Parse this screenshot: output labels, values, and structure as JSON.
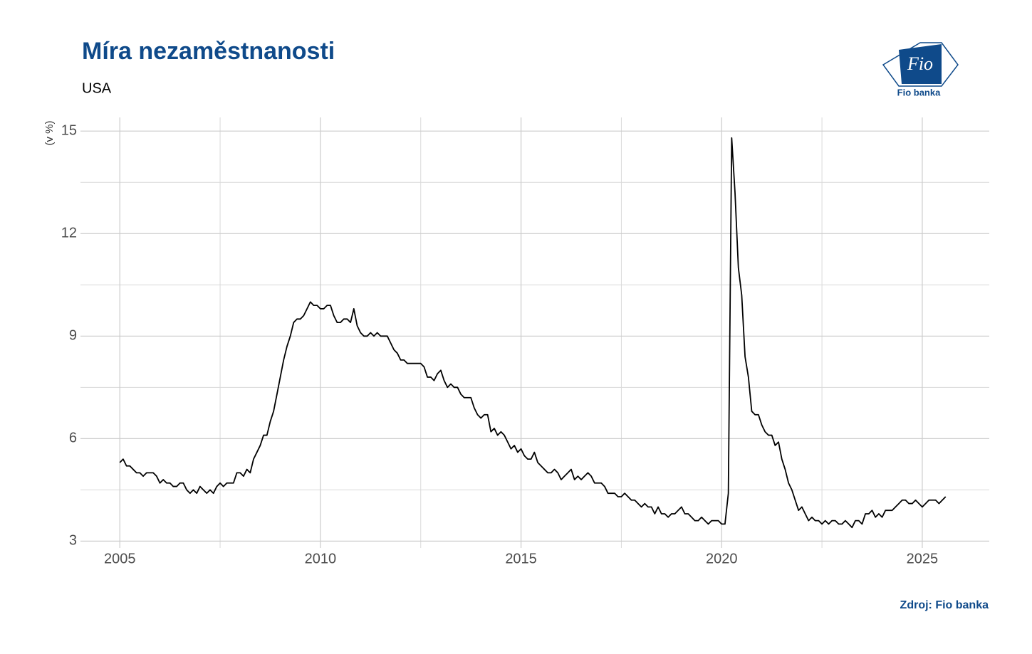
{
  "chart_data": {
    "type": "line",
    "title": "Míra nezaměstnanosti",
    "subtitle": "USA",
    "y_label": "(v %)",
    "source": "Zdroj: Fio banka",
    "x": [
      2005.0,
      2005.083,
      2005.167,
      2005.25,
      2005.333,
      2005.417,
      2005.5,
      2005.583,
      2005.667,
      2005.75,
      2005.833,
      2005.917,
      2006.0,
      2006.083,
      2006.167,
      2006.25,
      2006.333,
      2006.417,
      2006.5,
      2006.583,
      2006.667,
      2006.75,
      2006.833,
      2006.917,
      2007.0,
      2007.083,
      2007.167,
      2007.25,
      2007.333,
      2007.417,
      2007.5,
      2007.583,
      2007.667,
      2007.75,
      2007.833,
      2007.917,
      2008.0,
      2008.083,
      2008.167,
      2008.25,
      2008.333,
      2008.417,
      2008.5,
      2008.583,
      2008.667,
      2008.75,
      2008.833,
      2008.917,
      2009.0,
      2009.083,
      2009.167,
      2009.25,
      2009.333,
      2009.417,
      2009.5,
      2009.583,
      2009.667,
      2009.75,
      2009.833,
      2009.917,
      2010.0,
      2010.083,
      2010.167,
      2010.25,
      2010.333,
      2010.417,
      2010.5,
      2010.583,
      2010.667,
      2010.75,
      2010.833,
      2010.917,
      2011.0,
      2011.083,
      2011.167,
      2011.25,
      2011.333,
      2011.417,
      2011.5,
      2011.583,
      2011.667,
      2011.75,
      2011.833,
      2011.917,
      2012.0,
      2012.083,
      2012.167,
      2012.25,
      2012.333,
      2012.417,
      2012.5,
      2012.583,
      2012.667,
      2012.75,
      2012.833,
      2012.917,
      2013.0,
      2013.083,
      2013.167,
      2013.25,
      2013.333,
      2013.417,
      2013.5,
      2013.583,
      2013.667,
      2013.75,
      2013.833,
      2013.917,
      2014.0,
      2014.083,
      2014.167,
      2014.25,
      2014.333,
      2014.417,
      2014.5,
      2014.583,
      2014.667,
      2014.75,
      2014.833,
      2014.917,
      2015.0,
      2015.083,
      2015.167,
      2015.25,
      2015.333,
      2015.417,
      2015.5,
      2015.583,
      2015.667,
      2015.75,
      2015.833,
      2015.917,
      2016.0,
      2016.083,
      2016.167,
      2016.25,
      2016.333,
      2016.417,
      2016.5,
      2016.583,
      2016.667,
      2016.75,
      2016.833,
      2016.917,
      2017.0,
      2017.083,
      2017.167,
      2017.25,
      2017.333,
      2017.417,
      2017.5,
      2017.583,
      2017.667,
      2017.75,
      2017.833,
      2017.917,
      2018.0,
      2018.083,
      2018.167,
      2018.25,
      2018.333,
      2018.417,
      2018.5,
      2018.583,
      2018.667,
      2018.75,
      2018.833,
      2018.917,
      2019.0,
      2019.083,
      2019.167,
      2019.25,
      2019.333,
      2019.417,
      2019.5,
      2019.583,
      2019.667,
      2019.75,
      2019.833,
      2019.917,
      2020.0,
      2020.083,
      2020.167,
      2020.25,
      2020.333,
      2020.417,
      2020.5,
      2020.583,
      2020.667,
      2020.75,
      2020.833,
      2020.917,
      2021.0,
      2021.083,
      2021.167,
      2021.25,
      2021.333,
      2021.417,
      2021.5,
      2021.583,
      2021.667,
      2021.75,
      2021.833,
      2021.917,
      2022.0,
      2022.083,
      2022.167,
      2022.25,
      2022.333,
      2022.417,
      2022.5,
      2022.583,
      2022.667,
      2022.75,
      2022.833,
      2022.917,
      2023.0,
      2023.083,
      2023.167,
      2023.25,
      2023.333,
      2023.417,
      2023.5,
      2023.583,
      2023.667,
      2023.75,
      2023.833,
      2023.917,
      2024.0,
      2024.083,
      2024.167,
      2024.25,
      2024.333,
      2024.417,
      2024.5,
      2024.583,
      2024.667,
      2024.75,
      2024.833,
      2024.917,
      2025.0,
      2025.083,
      2025.167,
      2025.25,
      2025.333,
      2025.417,
      2025.5,
      2025.583
    ],
    "series": [
      {
        "name": "USA",
        "color": "#000000",
        "values": [
          5.3,
          5.4,
          5.2,
          5.2,
          5.1,
          5.0,
          5.0,
          4.9,
          5.0,
          5.0,
          5.0,
          4.9,
          4.7,
          4.8,
          4.7,
          4.7,
          4.6,
          4.6,
          4.7,
          4.7,
          4.5,
          4.4,
          4.5,
          4.4,
          4.6,
          4.5,
          4.4,
          4.5,
          4.4,
          4.6,
          4.7,
          4.6,
          4.7,
          4.7,
          4.7,
          5.0,
          5.0,
          4.9,
          5.1,
          5.0,
          5.4,
          5.6,
          5.8,
          6.1,
          6.1,
          6.5,
          6.8,
          7.3,
          7.8,
          8.3,
          8.7,
          9.0,
          9.4,
          9.5,
          9.5,
          9.6,
          9.8,
          10.0,
          9.9,
          9.9,
          9.8,
          9.8,
          9.9,
          9.9,
          9.6,
          9.4,
          9.4,
          9.5,
          9.5,
          9.4,
          9.8,
          9.3,
          9.1,
          9.0,
          9.0,
          9.1,
          9.0,
          9.1,
          9.0,
          9.0,
          9.0,
          8.8,
          8.6,
          8.5,
          8.3,
          8.3,
          8.2,
          8.2,
          8.2,
          8.2,
          8.2,
          8.1,
          7.8,
          7.8,
          7.7,
          7.9,
          8.0,
          7.7,
          7.5,
          7.6,
          7.5,
          7.5,
          7.3,
          7.2,
          7.2,
          7.2,
          6.9,
          6.7,
          6.6,
          6.7,
          6.7,
          6.2,
          6.3,
          6.1,
          6.2,
          6.1,
          5.9,
          5.7,
          5.8,
          5.6,
          5.7,
          5.5,
          5.4,
          5.4,
          5.6,
          5.3,
          5.2,
          5.1,
          5.0,
          5.0,
          5.1,
          5.0,
          4.8,
          4.9,
          5.0,
          5.1,
          4.8,
          4.9,
          4.8,
          4.9,
          5.0,
          4.9,
          4.7,
          4.7,
          4.7,
          4.6,
          4.4,
          4.4,
          4.4,
          4.3,
          4.3,
          4.4,
          4.3,
          4.2,
          4.2,
          4.1,
          4.0,
          4.1,
          4.0,
          4.0,
          3.8,
          4.0,
          3.8,
          3.8,
          3.7,
          3.8,
          3.8,
          3.9,
          4.0,
          3.8,
          3.8,
          3.7,
          3.6,
          3.6,
          3.7,
          3.6,
          3.5,
          3.6,
          3.6,
          3.6,
          3.5,
          3.5,
          4.4,
          14.8,
          13.2,
          11.0,
          10.2,
          8.4,
          7.8,
          6.8,
          6.7,
          6.7,
          6.4,
          6.2,
          6.1,
          6.1,
          5.8,
          5.9,
          5.4,
          5.1,
          4.7,
          4.5,
          4.2,
          3.9,
          4.0,
          3.8,
          3.6,
          3.7,
          3.6,
          3.6,
          3.5,
          3.6,
          3.5,
          3.6,
          3.6,
          3.5,
          3.5,
          3.6,
          3.5,
          3.4,
          3.6,
          3.6,
          3.5,
          3.8,
          3.8,
          3.9,
          3.7,
          3.8,
          3.7,
          3.9,
          3.9,
          3.9,
          4.0,
          4.1,
          4.2,
          4.2,
          4.1,
          4.1,
          4.2,
          4.1,
          4.0,
          4.1,
          4.2,
          4.2,
          4.2,
          4.1,
          4.2,
          4.3
        ]
      }
    ],
    "xlim": [
      2004.02,
      2026.67
    ],
    "ylim": [
      2.8,
      15.4
    ],
    "xticks": [
      2005,
      2010,
      2015,
      2020,
      2025
    ],
    "yticks": [
      3,
      6,
      9,
      12,
      15
    ],
    "x_minor_ticks": [
      2007.5,
      2012.5,
      2017.5,
      2022.5
    ],
    "y_minor_ticks": [
      4.5,
      7.5,
      10.5,
      13.5
    ],
    "grid": true
  },
  "logo": {
    "mark": "Fio",
    "name": "Fio banka"
  }
}
